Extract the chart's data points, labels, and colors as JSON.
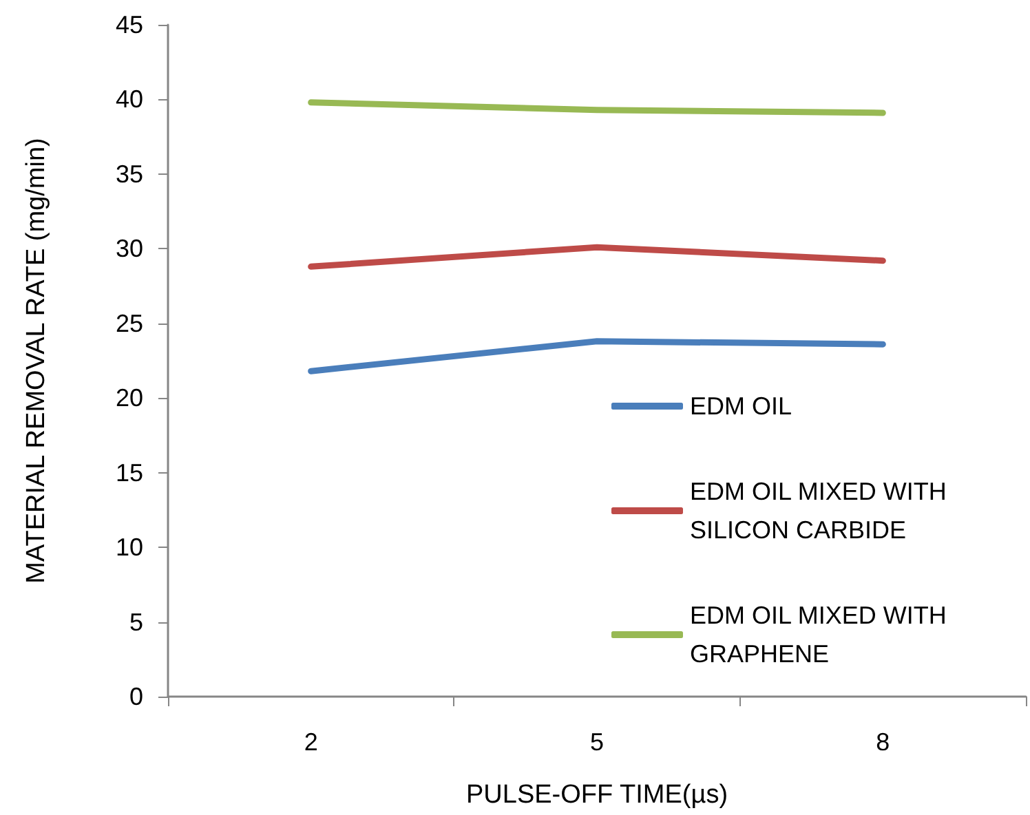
{
  "chart_data": {
    "type": "line",
    "xlabel": "PULSE-OFF TIME(µs)",
    "ylabel": "MATERIAL REMOVAL RATE (mg/min)",
    "categories": [
      "2",
      "5",
      "8"
    ],
    "series": [
      {
        "name": "EDM OIL",
        "color": "#4a7ebb",
        "values": [
          21.8,
          23.8,
          23.6
        ]
      },
      {
        "name": "EDM OIL MIXED WITH SILICON CARBIDE",
        "color": "#be4b48",
        "values": [
          28.8,
          30.1,
          29.2
        ]
      },
      {
        "name": "EDM OIL MIXED WITH GRAPHENE",
        "color": "#98b954",
        "values": [
          39.8,
          39.3,
          39.1
        ]
      }
    ],
    "ylim": [
      0,
      45
    ],
    "yticks": [
      0,
      5,
      10,
      15,
      20,
      25,
      30,
      35,
      40,
      45
    ],
    "grid": false,
    "legend": "bottom right",
    "marker": "none",
    "line_style": "solid"
  }
}
